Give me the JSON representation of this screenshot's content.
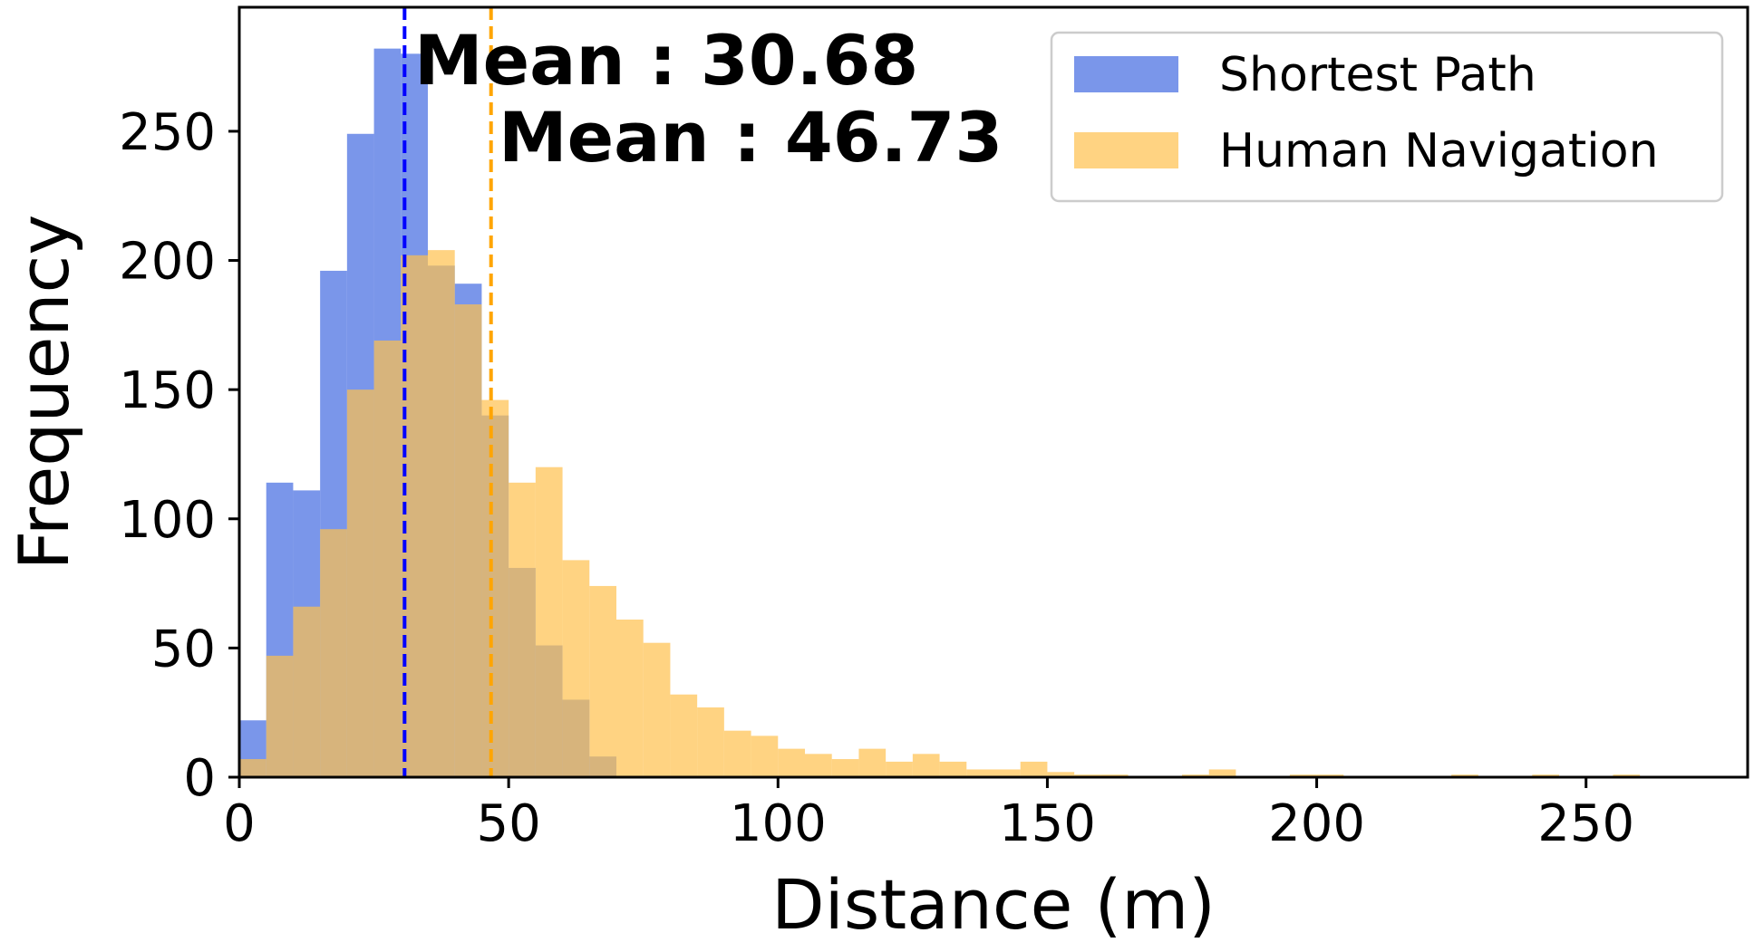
{
  "chart_data": {
    "type": "bar",
    "subtype": "overlapping-histogram",
    "xlabel": "Distance (m)",
    "ylabel": "Frequency",
    "xlim": [
      0,
      280
    ],
    "ylim": [
      0,
      298
    ],
    "xticks": [
      0,
      50,
      100,
      150,
      200,
      250
    ],
    "yticks": [
      0,
      50,
      100,
      150,
      200,
      250
    ],
    "grid": false,
    "legend_position": "top-right",
    "series": [
      {
        "name": "Shortest Path",
        "color": "#4169e1",
        "opacity": 0.7,
        "bin_edges": [
          0,
          5,
          10,
          15,
          20,
          25,
          30,
          35,
          40,
          45,
          50,
          55,
          60,
          65,
          70,
          75
        ],
        "values": [
          22,
          114,
          111,
          196,
          249,
          282,
          280,
          198,
          191,
          140,
          81,
          51,
          30,
          8,
          0
        ]
      },
      {
        "name": "Human Navigation",
        "color": "#ffc04d",
        "opacity": 0.7,
        "bin_edges": [
          0,
          5,
          10,
          15,
          20,
          25,
          30,
          35,
          40,
          45,
          50,
          55,
          60,
          65,
          70,
          75,
          80,
          85,
          90,
          95,
          100,
          105,
          110,
          115,
          120,
          125,
          130,
          135,
          140,
          145,
          150,
          155,
          160,
          165,
          170,
          175,
          180,
          185,
          190,
          195,
          200,
          205,
          210,
          215,
          220,
          225,
          230,
          235,
          240,
          245,
          250,
          255,
          260,
          265
        ],
        "values": [
          7,
          47,
          66,
          96,
          150,
          169,
          202,
          204,
          183,
          146,
          114,
          120,
          84,
          74,
          61,
          52,
          32,
          27,
          18,
          16,
          11,
          9,
          7,
          11,
          6,
          9,
          6,
          3,
          3,
          6,
          2,
          1,
          1,
          0,
          0,
          1,
          3,
          0,
          0,
          1,
          1,
          0,
          0,
          0,
          0,
          1,
          0,
          0,
          1,
          0,
          0,
          1,
          0
        ]
      }
    ],
    "mean_lines": [
      {
        "value": 30.68,
        "label": "Mean : 30.68",
        "color": "#0000ff"
      },
      {
        "value": 46.73,
        "label": "Mean : 46.73",
        "color": "#ffa500"
      }
    ]
  }
}
